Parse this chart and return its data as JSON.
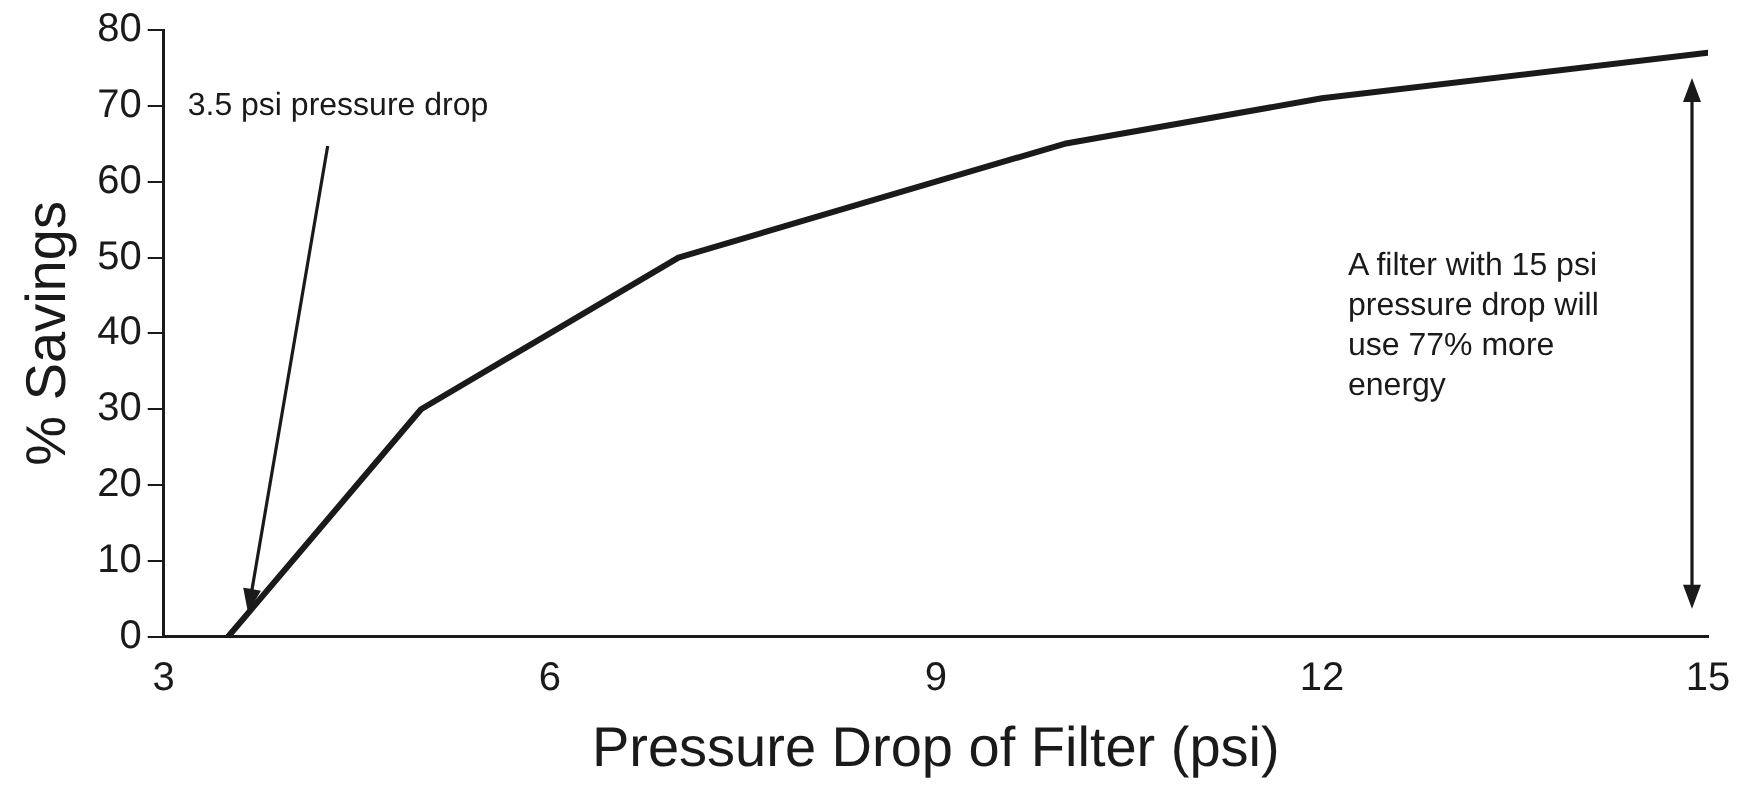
{
  "chart_data": {
    "type": "line",
    "xlabel": "Pressure Drop of Filter (psi)",
    "ylabel": "% Savings",
    "x": [
      3.5,
      5,
      7,
      10,
      12,
      15
    ],
    "series": [
      {
        "color": "#1a1a1a",
        "values": [
          0,
          30,
          50,
          65,
          71,
          77
        ]
      }
    ],
    "xlim": [
      3,
      15
    ],
    "xticks": [
      3,
      6,
      9,
      12,
      15
    ],
    "ylim": [
      0,
      80
    ],
    "yticks": [
      0,
      10,
      20,
      30,
      40,
      50,
      60,
      70,
      80
    ],
    "grid": false,
    "legend": false,
    "marker": "none",
    "line_style": "solid",
    "annotations": [
      "3.5 psi pressure drop",
      "A filter with 15 psi pressure drop will use 77% more energy"
    ]
  }
}
